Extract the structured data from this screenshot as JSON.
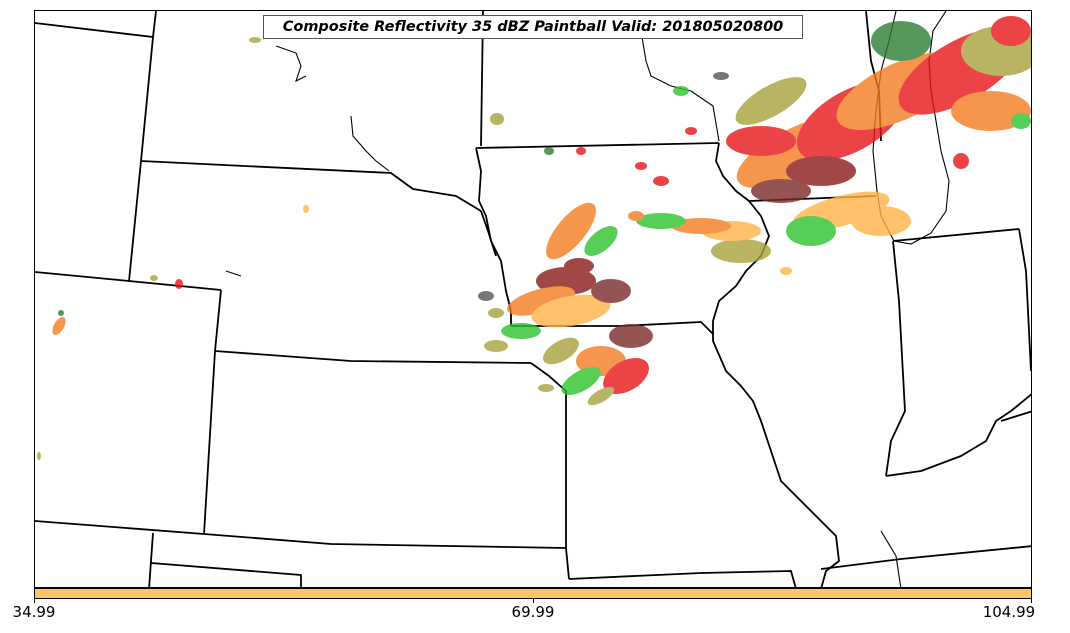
{
  "title": "Composite Reflectivity 35 dBZ Paintball Valid: 201805020800",
  "colorbar": {
    "color": "#ffc466",
    "ticks": [
      "34.99",
      "69.99",
      "104.99"
    ]
  },
  "paint_colors": {
    "red": "#e8141a",
    "dark_red": "#8b1a1a",
    "orange": "#f47c20",
    "light_orange": "#ffb347",
    "olive": "#a8a23a",
    "green": "#2ec42e",
    "dark_green": "#2e7d32",
    "maroon": "#7a2a2a",
    "gray": "#555555"
  }
}
